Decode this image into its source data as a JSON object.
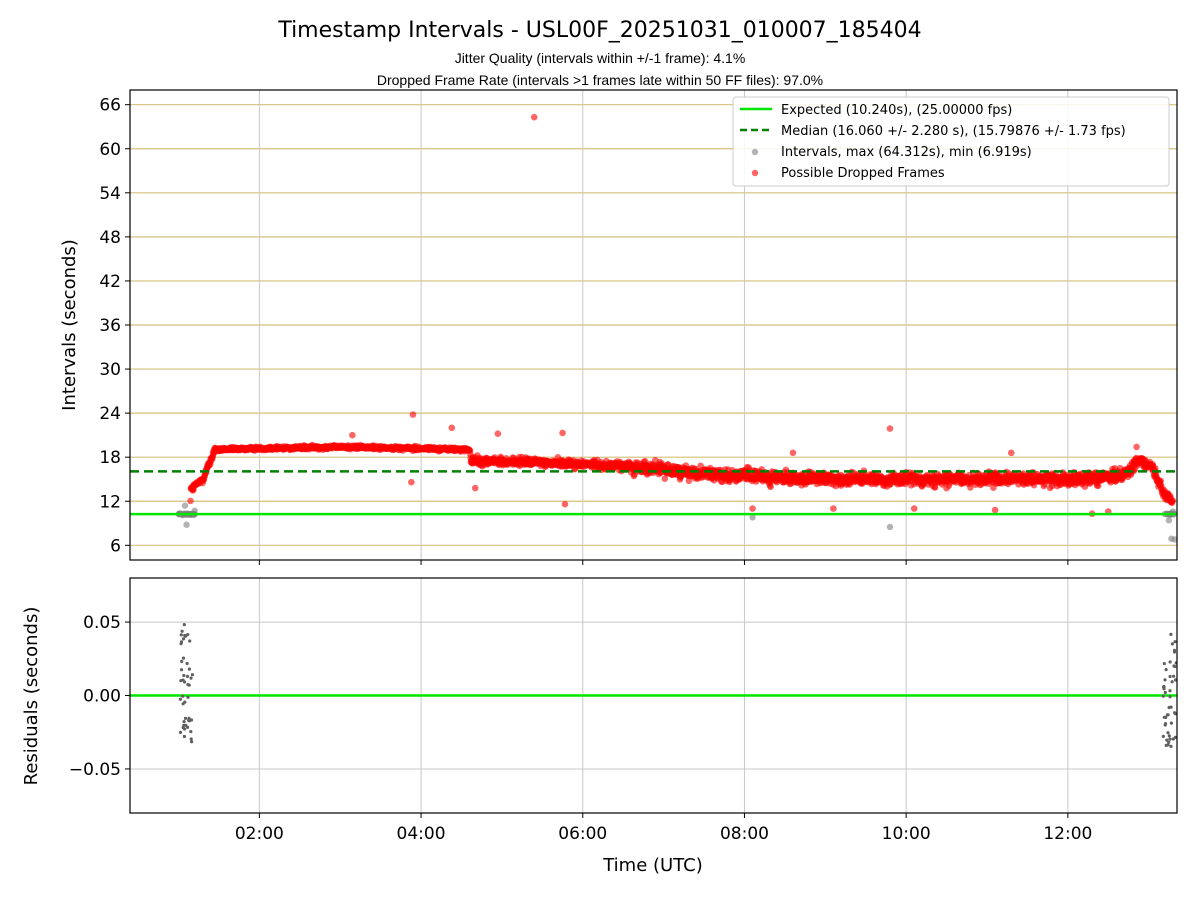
{
  "chart_data": {
    "type": "scatter",
    "title": "Timestamp Intervals - USL00F_20251031_010007_185404",
    "subtitle_lines": [
      "Jitter Quality (intervals within +/-1 frame): 4.1%",
      "Dropped Frame Rate (intervals >1 frames late within 50 FF files): 97.0%"
    ],
    "xlabel": "Time (UTC)",
    "x_unit": "hours",
    "xlim": [
      0.4,
      13.35
    ],
    "x_ticks": [
      2,
      4,
      6,
      8,
      10,
      12
    ],
    "x_tick_labels": [
      "02:00",
      "04:00",
      "06:00",
      "08:00",
      "10:00",
      "12:00"
    ],
    "top_panel": {
      "ylabel": "Intervals (seconds)",
      "ylim": [
        4,
        68
      ],
      "y_ticks": [
        6,
        12,
        18,
        24,
        30,
        36,
        42,
        48,
        54,
        60,
        66
      ],
      "y_tick_labels": [
        "6",
        "12",
        "18",
        "24",
        "30",
        "36",
        "42",
        "48",
        "54",
        "60",
        "66"
      ],
      "expected_value": 10.24,
      "median_value": 16.06,
      "legend": [
        "Expected (10.240s), (25.00000 fps)",
        "Median (16.060 +/- 2.280 s), (15.79876 +/- 1.73 fps)",
        "Intervals, max (64.312s), min (6.919s)",
        "Possible Dropped Frames"
      ],
      "trend": [
        [
          1.15,
          13.5
        ],
        [
          1.3,
          15.0
        ],
        [
          1.45,
          19.0
        ],
        [
          2.0,
          19.2
        ],
        [
          3.0,
          19.4
        ],
        [
          4.0,
          19.2
        ],
        [
          4.6,
          19.0
        ],
        [
          4.62,
          17.5
        ],
        [
          5.5,
          17.3
        ],
        [
          6.5,
          16.8
        ],
        [
          7.5,
          15.8
        ],
        [
          8.5,
          15.1
        ],
        [
          9.5,
          15.0
        ],
        [
          10.5,
          15.0
        ],
        [
          11.5,
          15.0
        ],
        [
          12.5,
          15.2
        ],
        [
          12.75,
          16.0
        ],
        [
          12.9,
          17.8
        ],
        [
          13.05,
          16.5
        ],
        [
          13.2,
          13.0
        ],
        [
          13.3,
          12.0
        ]
      ],
      "outliers_dropped": [
        [
          5.4,
          64.3
        ],
        [
          3.9,
          23.8
        ],
        [
          4.38,
          22.0
        ],
        [
          5.75,
          21.3
        ],
        [
          9.8,
          21.9
        ],
        [
          3.15,
          21.0
        ],
        [
          4.95,
          21.2
        ],
        [
          4.67,
          13.8
        ],
        [
          5.78,
          11.6
        ],
        [
          8.1,
          11.0
        ],
        [
          9.1,
          11.0
        ],
        [
          10.1,
          11.0
        ],
        [
          11.1,
          10.8
        ],
        [
          12.3,
          10.3
        ],
        [
          12.5,
          10.6
        ],
        [
          3.88,
          14.6
        ],
        [
          12.85,
          19.4
        ],
        [
          8.6,
          18.6
        ],
        [
          11.3,
          18.6
        ]
      ],
      "intervals_gray": [
        [
          1.05,
          10.1
        ],
        [
          1.15,
          10.2
        ],
        [
          1.08,
          11.4
        ],
        [
          1.2,
          10.7
        ],
        [
          1.1,
          8.8
        ],
        [
          8.1,
          9.8
        ],
        [
          9.8,
          8.5
        ],
        [
          13.25,
          9.4
        ],
        [
          13.28,
          6.9
        ],
        [
          13.32,
          6.8
        ],
        [
          13.3,
          10.6
        ]
      ]
    },
    "bottom_panel": {
      "ylabel": "Residuals (seconds)",
      "ylim": [
        -0.08,
        0.08
      ],
      "y_ticks": [
        0.05,
        0.0,
        -0.05
      ],
      "y_tick_labels": [
        "0.05",
        "0.00",
        "−0.05"
      ],
      "expected_value": 0.0,
      "clusters": [
        {
          "x_min": 1.02,
          "x_max": 1.18,
          "y_min": -0.037,
          "y_max": 0.049
        },
        {
          "x_min": 13.18,
          "x_max": 13.34,
          "y_min": -0.035,
          "y_max": 0.042
        }
      ]
    },
    "colors": {
      "expected": "#00e600",
      "median": "#008000",
      "dropped": "#ff0000",
      "intervals": "#808080",
      "hgrid_top": "#d4bf7a",
      "grid": "#c8c8c8"
    }
  }
}
